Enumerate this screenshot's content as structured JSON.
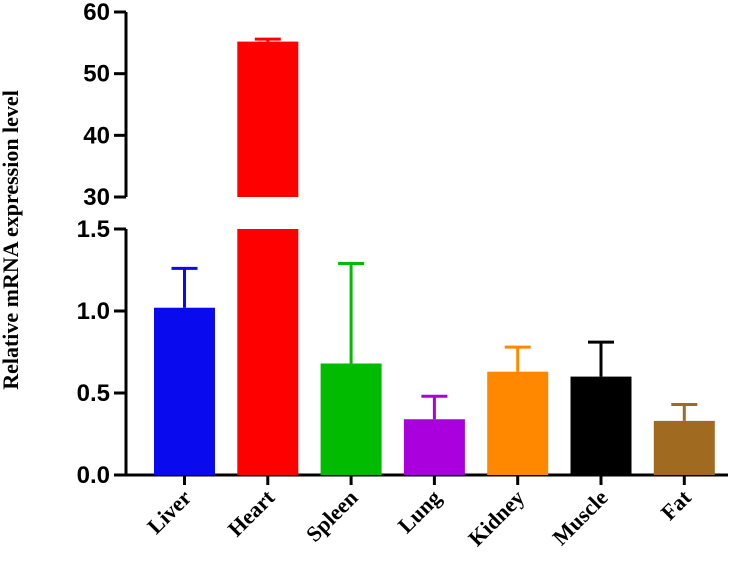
{
  "chart_data": {
    "type": "bar",
    "ylabel": "Relative mRNA expression level",
    "xlabel": "",
    "categories": [
      "Liver",
      "Heart",
      "Spleen",
      "Lung",
      "Kidney",
      "Muscle",
      "Fat"
    ],
    "values": [
      1.02,
      55.2,
      0.68,
      0.34,
      0.63,
      0.6,
      0.33
    ],
    "error_upper": [
      1.26,
      55.6,
      1.29,
      0.48,
      0.78,
      0.81,
      0.43
    ],
    "colors": [
      "#0a0aee",
      "#ff0000",
      "#00bb00",
      "#aa00dd",
      "#ff8800",
      "#000000",
      "#a06a20"
    ],
    "y_axis_broken": true,
    "ylim_lower": [
      0,
      1.5
    ],
    "ylim_upper": [
      30,
      60
    ],
    "yticks_lower": [
      "0.0",
      "0.5",
      "1.0",
      "1.5"
    ],
    "yticks_upper": [
      "30",
      "40",
      "50",
      "60"
    ],
    "grid": false,
    "legend": "none"
  }
}
